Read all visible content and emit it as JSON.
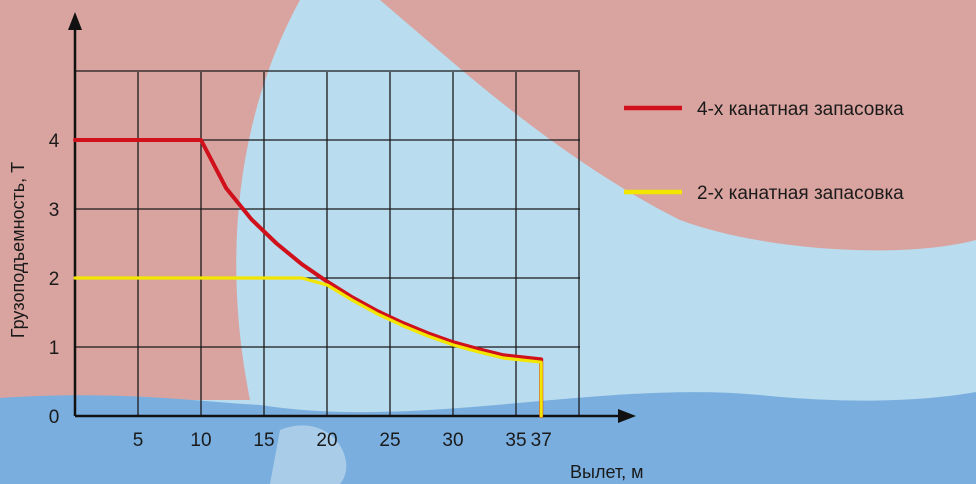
{
  "chart_data": {
    "type": "line",
    "xlabel": "Вылет, м",
    "ylabel": "Грузоподъемность, Т",
    "xlim": [
      0,
      40
    ],
    "ylim": [
      0,
      5
    ],
    "x_ticks": [
      5,
      10,
      15,
      20,
      25,
      30,
      35,
      37
    ],
    "y_ticks": [
      0,
      1,
      2,
      3,
      4
    ],
    "grid": true,
    "legend": "right",
    "series": [
      {
        "name": "4-х канатная запасовка",
        "color": "#d0101a",
        "x": [
          0,
          10,
          12,
          14,
          16,
          18,
          20,
          22,
          24,
          26,
          28,
          30,
          32,
          34,
          37,
          37
        ],
        "y": [
          4,
          4,
          3.3,
          2.85,
          2.5,
          2.2,
          1.95,
          1.72,
          1.52,
          1.35,
          1.2,
          1.07,
          0.97,
          0.88,
          0.82,
          0
        ]
      },
      {
        "name": "2-х канатная запасовка",
        "color": "#f2e600",
        "x": [
          0,
          18,
          20,
          22,
          24,
          26,
          28,
          30,
          32,
          34,
          37,
          37
        ],
        "y": [
          2,
          2,
          1.9,
          1.68,
          1.48,
          1.31,
          1.16,
          1.03,
          0.93,
          0.84,
          0.78,
          0
        ]
      }
    ]
  }
}
